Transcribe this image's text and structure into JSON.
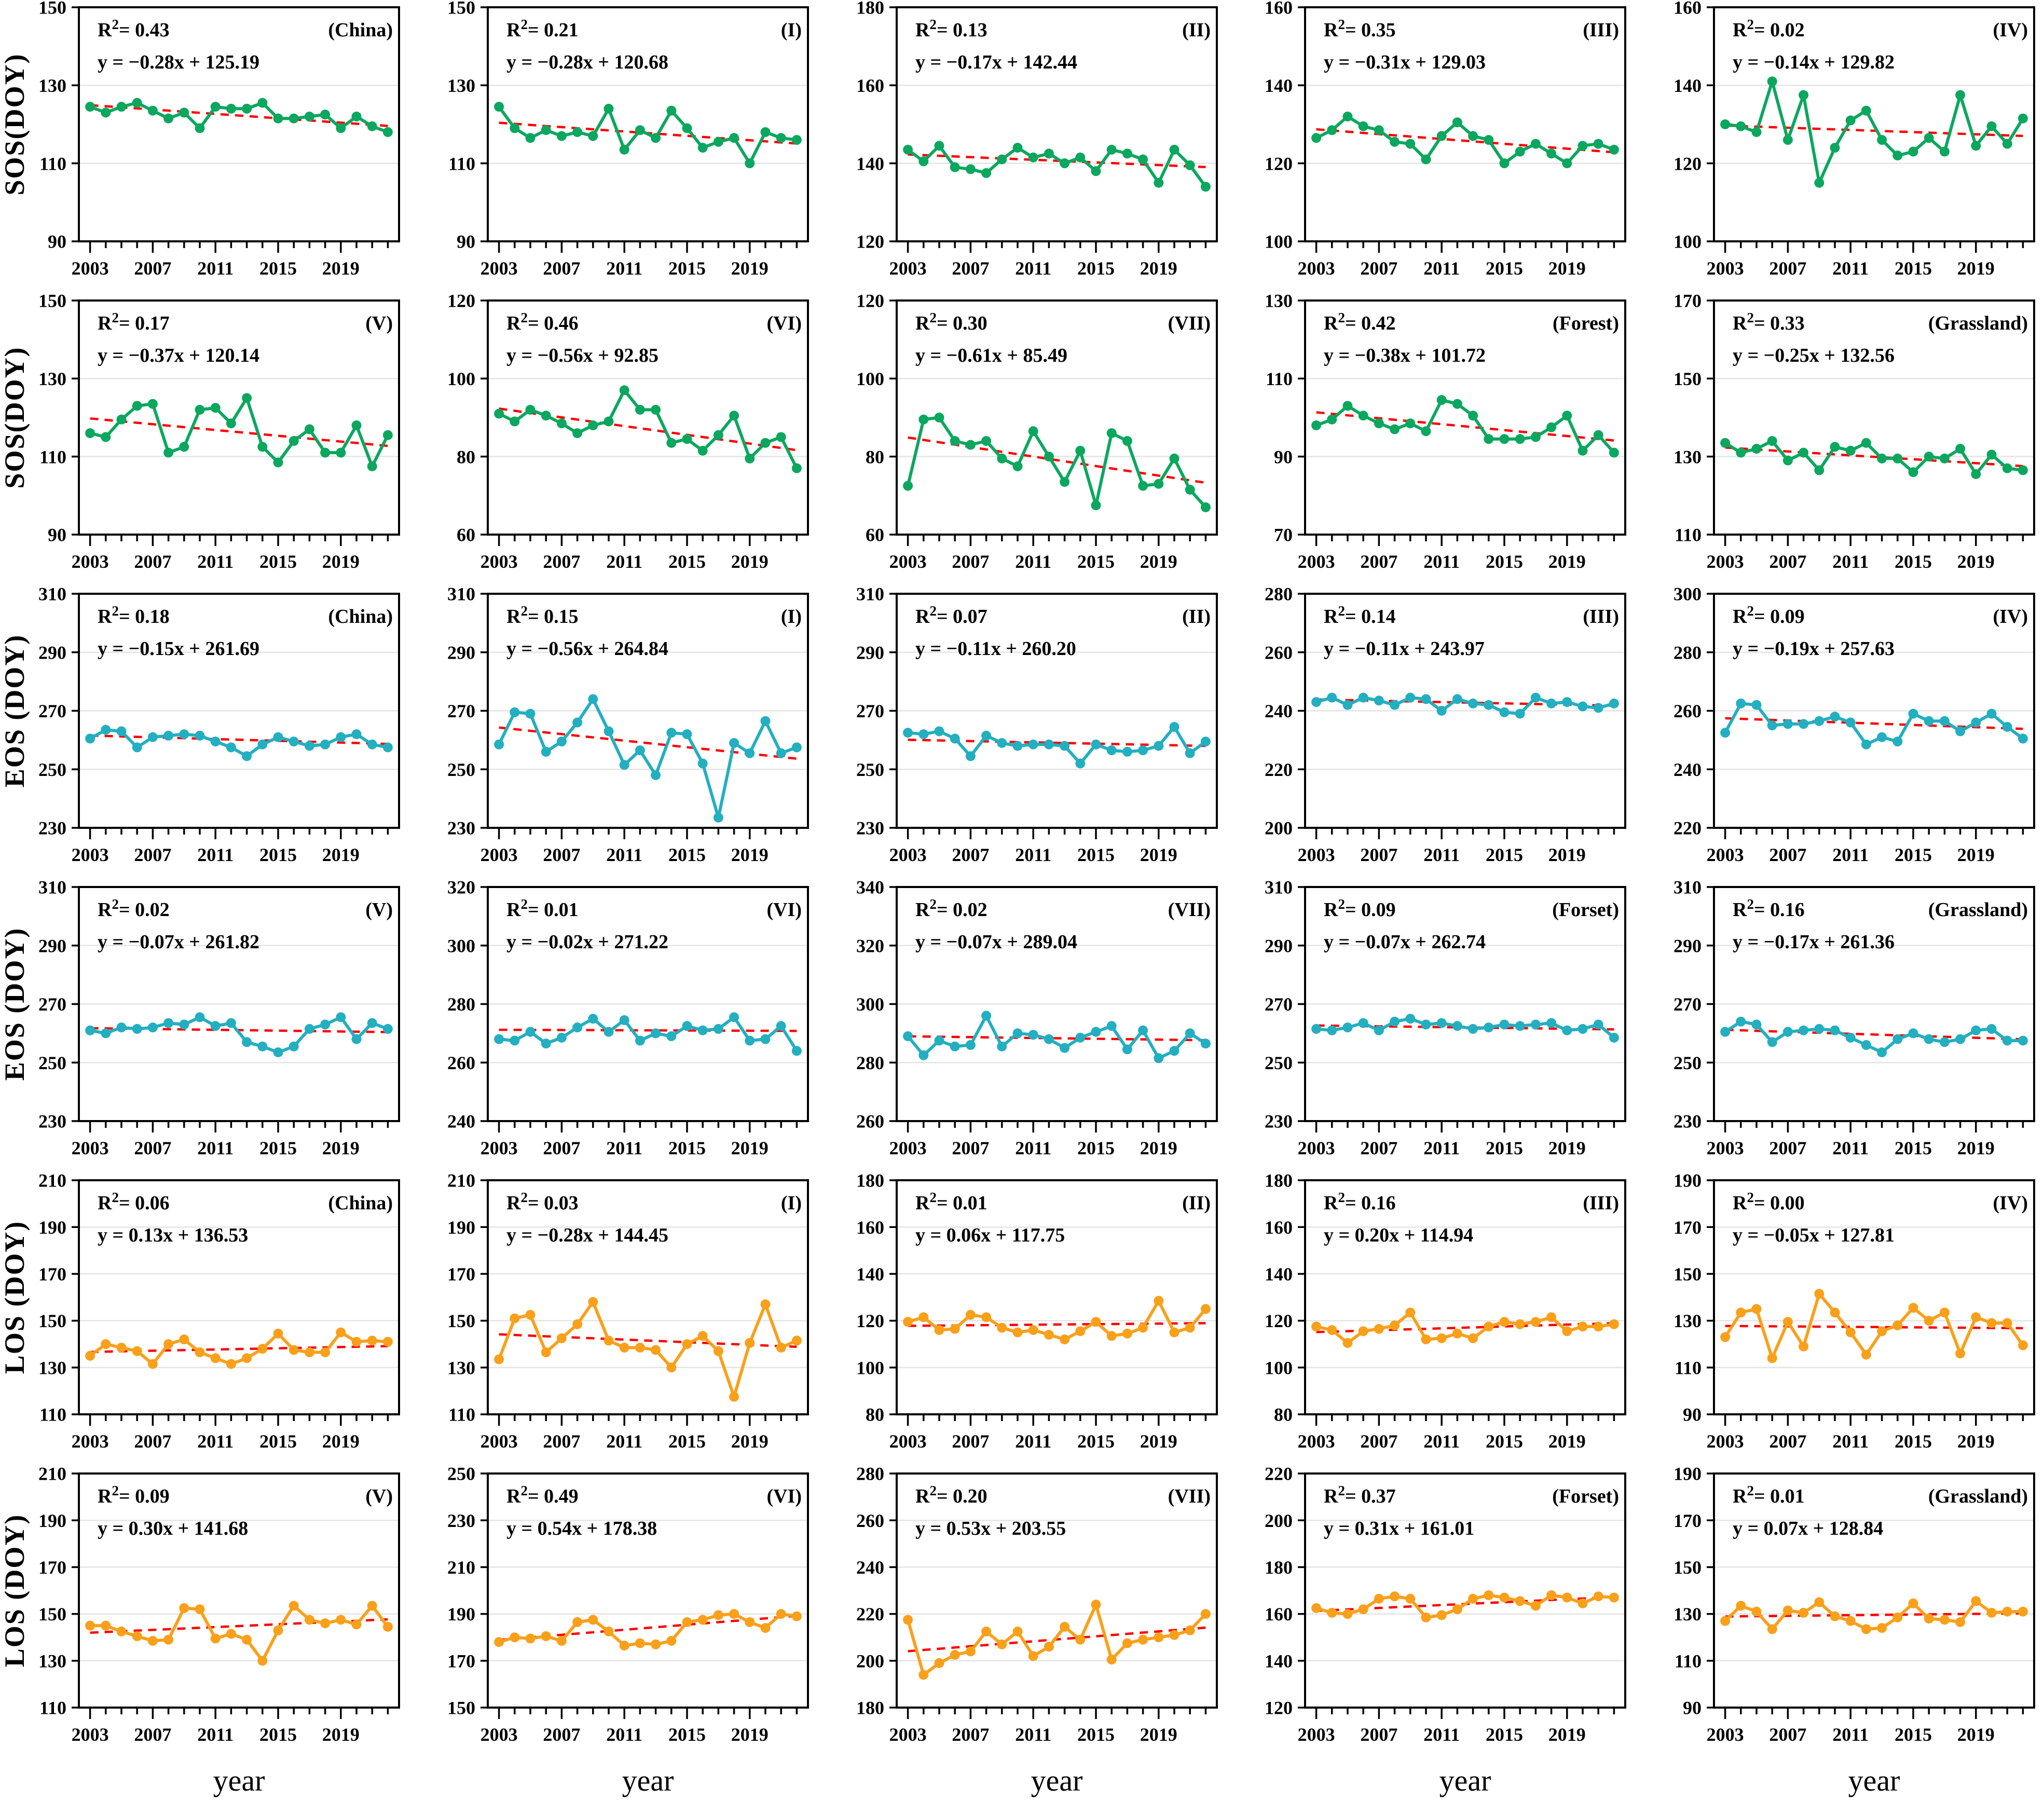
{
  "figure": {
    "xlabel": "year",
    "x_years": [
      2003,
      2004,
      2005,
      2006,
      2007,
      2008,
      2009,
      2010,
      2011,
      2012,
      2013,
      2014,
      2015,
      2016,
      2017,
      2018,
      2019,
      2020,
      2021,
      2022
    ],
    "x_major_ticks": [
      2003,
      2007,
      2011,
      2015,
      2019
    ],
    "row_axis_titles": [
      "SOS(DOY)",
      "SOS(DOY)",
      "EOS (DOY)",
      "EOS (DOY)",
      "LOS (DOY)",
      "LOS (DOY)"
    ]
  },
  "palette": {
    "sos": "#0CA75F",
    "eos": "#23AFC0",
    "los": "#F9A01B",
    "trend": "#FF0000",
    "grid": "#E4E4E4",
    "frame": "#000000"
  },
  "chart_data": [
    {
      "type": "line",
      "row": 0,
      "col": 0,
      "series": "sos",
      "panel": "(China)",
      "r2": "0.43",
      "equation": "y = −0.28x + 125.19",
      "slope": -0.28,
      "intercept": 125.19,
      "ylim": [
        90,
        150
      ],
      "ytick_step": 20,
      "values": [
        124.5,
        123,
        124.5,
        125.5,
        123.5,
        121.5,
        123,
        119,
        124.5,
        124,
        124,
        125.5,
        121.5,
        121.5,
        122,
        122.5,
        119,
        122,
        119.5,
        118
      ]
    },
    {
      "type": "line",
      "row": 0,
      "col": 1,
      "series": "sos",
      "panel": "(I)",
      "r2": "0.21",
      "equation": "y = −0.28x + 120.68",
      "slope": -0.28,
      "intercept": 120.68,
      "ylim": [
        90,
        150
      ],
      "ytick_step": 20,
      "values": [
        124.5,
        119,
        116.5,
        118.5,
        117,
        118,
        117,
        124,
        113.5,
        118.5,
        116.5,
        123.5,
        119,
        114,
        115.5,
        116.5,
        110,
        118,
        116.5,
        116
      ]
    },
    {
      "type": "line",
      "row": 0,
      "col": 2,
      "series": "sos",
      "panel": "(II)",
      "r2": "0.13",
      "equation": "y = −0.17x + 142.44",
      "slope": -0.17,
      "intercept": 142.44,
      "ylim": [
        120,
        180
      ],
      "ytick_step": 20,
      "values": [
        143.5,
        140.5,
        144.5,
        139,
        138.5,
        137.5,
        141,
        144,
        141.5,
        142.5,
        140,
        141.5,
        138,
        143.5,
        142.5,
        141,
        135,
        143.5,
        139.5,
        134
      ]
    },
    {
      "type": "line",
      "row": 0,
      "col": 3,
      "series": "sos",
      "panel": "(III)",
      "r2": "0.35",
      "equation": "y = −0.31x + 129.03",
      "slope": -0.31,
      "intercept": 129.03,
      "ylim": [
        100,
        160
      ],
      "ytick_step": 20,
      "values": [
        126.5,
        128.5,
        132,
        129.5,
        128.5,
        125.5,
        125,
        121,
        127,
        130.5,
        127,
        126,
        120,
        123,
        125,
        122.5,
        120,
        124.5,
        125,
        123.5
      ]
    },
    {
      "type": "line",
      "row": 0,
      "col": 4,
      "series": "sos",
      "panel": "(IV)",
      "r2": "0.02",
      "equation": "y = −0.14x + 129.82",
      "slope": -0.14,
      "intercept": 129.82,
      "ylim": [
        100,
        160
      ],
      "ytick_step": 20,
      "values": [
        130,
        129.5,
        128,
        141,
        126,
        137.5,
        115,
        124,
        131,
        133.5,
        126,
        122,
        123,
        126.5,
        123,
        137.5,
        124.5,
        129.5,
        125,
        131.5
      ]
    },
    {
      "type": "line",
      "row": 1,
      "col": 0,
      "series": "sos",
      "panel": "(V)",
      "r2": "0.17",
      "equation": "y = −0.37x + 120.14",
      "slope": -0.37,
      "intercept": 120.14,
      "ylim": [
        90,
        150
      ],
      "ytick_step": 20,
      "values": [
        116,
        115,
        119.5,
        123,
        123.5,
        111,
        112.5,
        122,
        122.5,
        118.5,
        125,
        112.5,
        108.5,
        114,
        117,
        111,
        111,
        118,
        107.5,
        115.5
      ]
    },
    {
      "type": "line",
      "row": 1,
      "col": 1,
      "series": "sos",
      "panel": "(VI)",
      "r2": "0.46",
      "equation": "y = −0.56x + 92.85",
      "slope": -0.56,
      "intercept": 92.85,
      "ylim": [
        60,
        120
      ],
      "ytick_step": 20,
      "values": [
        91,
        89,
        92,
        90.5,
        88.5,
        86,
        88,
        89,
        97,
        92,
        92,
        83.5,
        84.5,
        81.5,
        85.5,
        90.5,
        79.5,
        83.5,
        85,
        77
      ]
    },
    {
      "type": "line",
      "row": 1,
      "col": 2,
      "series": "sos",
      "panel": "(VII)",
      "r2": "0.30",
      "equation": "y = −0.61x + 85.49",
      "slope": -0.61,
      "intercept": 85.49,
      "ylim": [
        60,
        120
      ],
      "ytick_step": 20,
      "values": [
        72.5,
        89.5,
        90,
        84,
        83,
        84,
        79.5,
        77.5,
        86.5,
        80,
        73.5,
        81.5,
        67.5,
        86,
        84,
        72.5,
        73,
        79.5,
        71.5,
        67
      ]
    },
    {
      "type": "line",
      "row": 1,
      "col": 3,
      "series": "sos",
      "panel": "(Forest)",
      "r2": "0.42",
      "equation": "y = −0.38x + 101.72",
      "slope": -0.38,
      "intercept": 101.72,
      "ylim": [
        70,
        130
      ],
      "ytick_step": 20,
      "values": [
        98,
        99.5,
        103,
        100.5,
        98.5,
        97,
        98.5,
        96.5,
        104.5,
        103.5,
        100.5,
        94.5,
        94.5,
        94.5,
        95,
        97.5,
        100.5,
        91.5,
        95.5,
        91
      ]
    },
    {
      "type": "line",
      "row": 1,
      "col": 4,
      "series": "sos",
      "panel": "(Grassland)",
      "r2": "0.33",
      "equation": "y = −0.25x + 132.56",
      "slope": -0.25,
      "intercept": 132.56,
      "ylim": [
        110,
        170
      ],
      "ytick_step": 20,
      "values": [
        133.5,
        131,
        132,
        134,
        129,
        131,
        126.5,
        132.5,
        131.5,
        133.5,
        129.5,
        129.5,
        126,
        130,
        129.5,
        132,
        125.5,
        130.5,
        127,
        126.5
      ]
    },
    {
      "type": "line",
      "row": 2,
      "col": 0,
      "series": "eos",
      "panel": "(China)",
      "r2": "0.18",
      "equation": "y = −0.15x + 261.69",
      "slope": -0.15,
      "intercept": 261.69,
      "ylim": [
        230,
        310
      ],
      "ytick_step": 20,
      "values": [
        260.5,
        263.5,
        263,
        257.5,
        261,
        261.5,
        262,
        261.5,
        259.5,
        257.5,
        254.5,
        258.5,
        261,
        259.5,
        258,
        258.5,
        261,
        262,
        258.5,
        257.5
      ]
    },
    {
      "type": "line",
      "row": 2,
      "col": 1,
      "series": "eos",
      "panel": "(I)",
      "r2": "0.15",
      "equation": "y = −0.56x + 264.84",
      "slope": -0.56,
      "intercept": 264.84,
      "ylim": [
        230,
        310
      ],
      "ytick_step": 20,
      "values": [
        258.5,
        269.5,
        269,
        256,
        259.5,
        266,
        274,
        263,
        251.5,
        256.5,
        248,
        262.5,
        262,
        252,
        233.5,
        259,
        255.5,
        266.5,
        255.5,
        257.5
      ]
    },
    {
      "type": "line",
      "row": 2,
      "col": 2,
      "series": "eos",
      "panel": "(II)",
      "r2": "0.07",
      "equation": "y = −0.11x + 260.20",
      "slope": -0.11,
      "intercept": 260.2,
      "ylim": [
        230,
        310
      ],
      "ytick_step": 20,
      "values": [
        262.5,
        262,
        263,
        260.5,
        254.5,
        261.5,
        259,
        258,
        258.5,
        258.5,
        258,
        252,
        258.5,
        256.5,
        256,
        256.5,
        258,
        264.5,
        255.5,
        259.5
      ]
    },
    {
      "type": "line",
      "row": 2,
      "col": 3,
      "series": "eos",
      "panel": "(III)",
      "r2": "0.14",
      "equation": "y = −0.11x + 243.97",
      "slope": -0.11,
      "intercept": 243.97,
      "ylim": [
        200,
        280
      ],
      "ytick_step": 20,
      "values": [
        243,
        244.5,
        242,
        244.5,
        243.5,
        242,
        244.5,
        244,
        240,
        244,
        242.5,
        242,
        239.5,
        239,
        244.5,
        242.5,
        243,
        241.5,
        241,
        242.5
      ]
    },
    {
      "type": "line",
      "row": 2,
      "col": 4,
      "series": "eos",
      "panel": "(IV)",
      "r2": "0.09",
      "equation": "y = −0.19x + 257.63",
      "slope": -0.19,
      "intercept": 257.63,
      "ylim": [
        220,
        300
      ],
      "ytick_step": 20,
      "values": [
        252.5,
        262.5,
        262,
        255,
        255.5,
        255.5,
        256.5,
        258,
        256,
        248.5,
        251,
        249.5,
        259,
        256.5,
        256.5,
        253,
        256,
        259,
        254.5,
        250.5
      ]
    },
    {
      "type": "line",
      "row": 3,
      "col": 0,
      "series": "eos",
      "panel": "(V)",
      "r2": "0.02",
      "equation": "y = −0.07x + 261.82",
      "slope": -0.07,
      "intercept": 261.82,
      "ylim": [
        230,
        310
      ],
      "ytick_step": 20,
      "values": [
        261,
        260,
        262,
        261.5,
        262,
        263.5,
        263,
        265.5,
        262.5,
        263.5,
        257,
        255.5,
        253.5,
        255.5,
        261.5,
        263,
        265.5,
        258,
        263.5,
        261.5
      ]
    },
    {
      "type": "line",
      "row": 3,
      "col": 1,
      "series": "eos",
      "panel": "(VI)",
      "r2": "0.01",
      "equation": "y = −0.02x + 271.22",
      "slope": -0.02,
      "intercept": 271.22,
      "ylim": [
        240,
        320
      ],
      "ytick_step": 20,
      "values": [
        268,
        267.5,
        270.5,
        266.5,
        268.5,
        272,
        275,
        270.5,
        274.5,
        267.5,
        270,
        269,
        272.5,
        271,
        271.5,
        275.5,
        267.5,
        268,
        272.5,
        264
      ]
    },
    {
      "type": "line",
      "row": 3,
      "col": 2,
      "series": "eos",
      "panel": "(VII)",
      "r2": "0.02",
      "equation": "y = −0.07x + 289.04",
      "slope": -0.07,
      "intercept": 289.04,
      "ylim": [
        260,
        340
      ],
      "ytick_step": 20,
      "values": [
        289,
        282.5,
        287.5,
        285.5,
        286,
        296,
        285.5,
        290,
        289.5,
        288,
        285,
        288.5,
        290.5,
        292.5,
        284.5,
        291,
        281.5,
        284,
        290,
        286.5
      ]
    },
    {
      "type": "line",
      "row": 3,
      "col": 3,
      "series": "eos",
      "panel": "(Forset)",
      "r2": "0.09",
      "equation": "y = −0.07x + 262.74",
      "slope": -0.07,
      "intercept": 262.74,
      "ylim": [
        230,
        310
      ],
      "ytick_step": 20,
      "values": [
        261.5,
        261,
        262,
        263.5,
        261,
        264,
        265,
        263,
        263.5,
        262.5,
        261.5,
        262,
        263,
        262.5,
        263,
        263.5,
        261,
        261.5,
        263,
        258.5
      ]
    },
    {
      "type": "line",
      "row": 3,
      "col": 4,
      "series": "eos",
      "panel": "(Grassland)",
      "r2": "0.16",
      "equation": "y = −0.17x + 261.36",
      "slope": -0.17,
      "intercept": 261.36,
      "ylim": [
        230,
        310
      ],
      "ytick_step": 20,
      "values": [
        260.5,
        264,
        263,
        257,
        260.5,
        261,
        261.5,
        261,
        258.5,
        256,
        253.5,
        258,
        260,
        258,
        257,
        258,
        261,
        261.5,
        257.5,
        257.5
      ]
    },
    {
      "type": "line",
      "row": 4,
      "col": 0,
      "series": "los",
      "panel": "(China)",
      "r2": "0.06",
      "equation": "y = 0.13x + 136.53",
      "slope": 0.13,
      "intercept": 136.53,
      "ylim": [
        110,
        210
      ],
      "ytick_step": 20,
      "values": [
        135,
        140,
        138.5,
        137,
        131.5,
        140,
        142,
        136.5,
        134,
        131.5,
        134,
        138,
        144.5,
        137.5,
        136.5,
        136.5,
        145,
        141,
        141.5,
        141
      ]
    },
    {
      "type": "line",
      "row": 4,
      "col": 1,
      "series": "los",
      "panel": "(I)",
      "r2": "0.03",
      "equation": "y = −0.28x + 144.45",
      "slope": -0.28,
      "intercept": 144.45,
      "ylim": [
        110,
        210
      ],
      "ytick_step": 20,
      "values": [
        133.5,
        151,
        152.5,
        136.5,
        142.5,
        148.5,
        158,
        141.5,
        138.5,
        138.5,
        137.5,
        130,
        140,
        143.5,
        137,
        117.5,
        140.5,
        157,
        138.5,
        141.5
      ]
    },
    {
      "type": "line",
      "row": 4,
      "col": 2,
      "series": "los",
      "panel": "(II)",
      "r2": "0.01",
      "equation": "y = 0.06x + 117.75",
      "slope": 0.06,
      "intercept": 117.75,
      "ylim": [
        80,
        180
      ],
      "ytick_step": 20,
      "values": [
        119.5,
        121.5,
        116,
        116.5,
        122.5,
        121.5,
        117,
        115,
        116,
        114,
        112,
        115.5,
        119.5,
        113.5,
        114.5,
        117,
        128.5,
        115,
        117,
        125
      ]
    },
    {
      "type": "line",
      "row": 4,
      "col": 3,
      "series": "los",
      "panel": "(III)",
      "r2": "0.16",
      "equation": "y = 0.20x + 114.94",
      "slope": 0.2,
      "intercept": 114.94,
      "ylim": [
        80,
        180
      ],
      "ytick_step": 20,
      "values": [
        117.5,
        116,
        110.5,
        115.5,
        116.5,
        118,
        123.5,
        112,
        112.5,
        114.5,
        112.5,
        117.5,
        119.5,
        118.5,
        119.5,
        121.5,
        115.5,
        117.5,
        117.5,
        118.5
      ]
    },
    {
      "type": "line",
      "row": 4,
      "col": 4,
      "series": "los",
      "panel": "(IV)",
      "r2": "0.00",
      "equation": "y = −0.05x + 127.81",
      "slope": -0.05,
      "intercept": 127.81,
      "ylim": [
        90,
        190
      ],
      "ytick_step": 20,
      "values": [
        123,
        133.5,
        135,
        114,
        129.5,
        119,
        141.5,
        133.5,
        125,
        115.5,
        125.5,
        128,
        135.5,
        130,
        133.5,
        116,
        131.5,
        129,
        129,
        119.5
      ]
    },
    {
      "type": "line",
      "row": 5,
      "col": 0,
      "series": "los",
      "panel": "(V)",
      "r2": "0.09",
      "equation": "y = 0.30x + 141.68",
      "slope": 0.3,
      "intercept": 141.68,
      "ylim": [
        110,
        210
      ],
      "ytick_step": 20,
      "values": [
        145,
        145,
        142.5,
        140.5,
        138.5,
        139,
        152.5,
        152,
        139.5,
        141.5,
        139,
        130,
        143,
        153.5,
        147.5,
        146,
        147.5,
        145.5,
        153.5,
        144.5
      ]
    },
    {
      "type": "line",
      "row": 5,
      "col": 1,
      "series": "los",
      "panel": "(VI)",
      "r2": "0.49",
      "equation": "y = 0.54x + 178.38",
      "slope": 0.54,
      "intercept": 178.38,
      "ylim": [
        150,
        250
      ],
      "ytick_step": 20,
      "values": [
        178,
        180,
        179.5,
        180.5,
        178.5,
        186.5,
        187.5,
        182.5,
        176.5,
        177.5,
        177,
        178.5,
        186.5,
        187.5,
        189.5,
        190,
        186.5,
        184,
        190,
        189
      ]
    },
    {
      "type": "line",
      "row": 5,
      "col": 2,
      "series": "los",
      "panel": "(VII)",
      "r2": "0.20",
      "equation": "y = 0.53x + 203.55",
      "slope": 0.53,
      "intercept": 203.55,
      "ylim": [
        180,
        280
      ],
      "ytick_step": 20,
      "values": [
        217.5,
        194,
        199,
        202.5,
        204,
        212.5,
        207,
        212.5,
        202,
        206,
        214.5,
        209,
        224,
        200.5,
        207.5,
        209,
        210,
        211,
        213,
        220
      ]
    },
    {
      "type": "line",
      "row": 5,
      "col": 3,
      "series": "los",
      "panel": "(Forset)",
      "r2": "0.37",
      "equation": "y = 0.31x + 161.01",
      "slope": 0.31,
      "intercept": 161.01,
      "ylim": [
        120,
        220
      ],
      "ytick_step": 20,
      "values": [
        162.5,
        160.5,
        160,
        162,
        166.5,
        167.5,
        166.5,
        158.5,
        159.5,
        162,
        166.5,
        168,
        167,
        165.5,
        163.5,
        168,
        167,
        164.5,
        167.5,
        167
      ]
    },
    {
      "type": "line",
      "row": 5,
      "col": 4,
      "series": "los",
      "panel": "(Grassland)",
      "r2": "0.01",
      "equation": "y = 0.07x + 128.84",
      "slope": 0.07,
      "intercept": 128.84,
      "ylim": [
        90,
        190
      ],
      "ytick_step": 20,
      "values": [
        127,
        133.5,
        131,
        123.5,
        131.5,
        130.5,
        135,
        129,
        127,
        123.5,
        124,
        128.5,
        134.5,
        128,
        127.5,
        126.5,
        135.5,
        130.5,
        131,
        131
      ]
    }
  ]
}
